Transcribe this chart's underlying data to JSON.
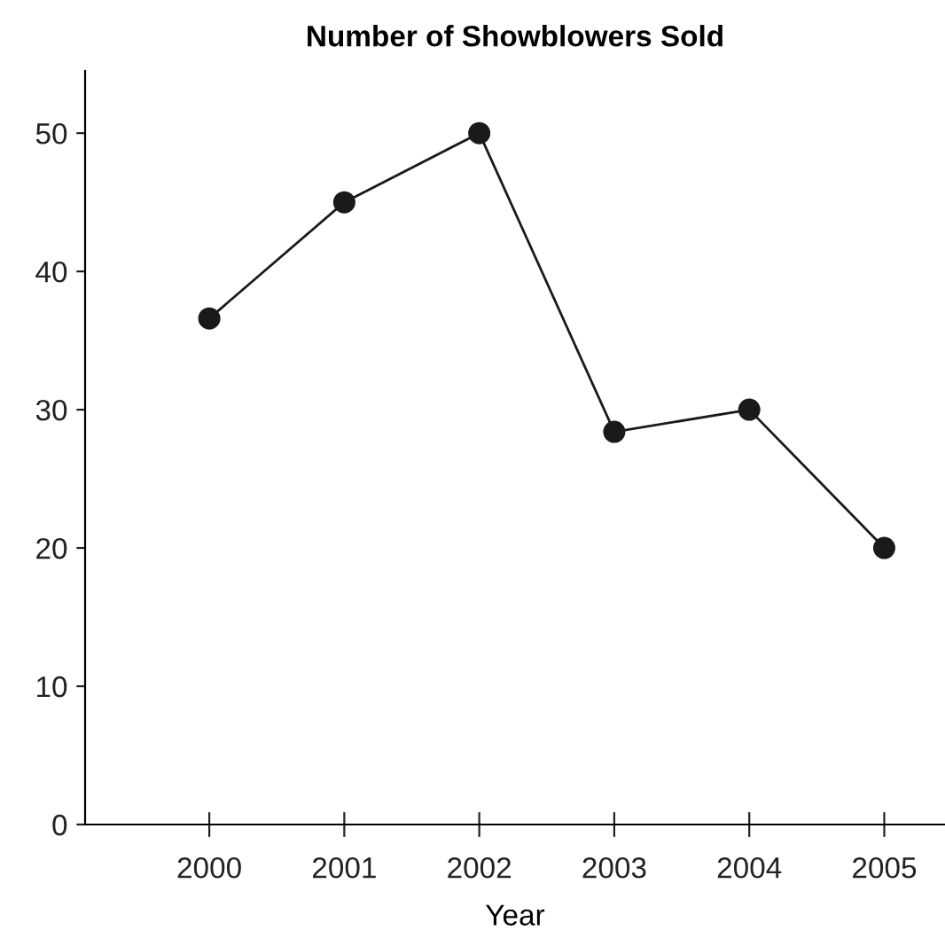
{
  "chart_data": {
    "type": "line",
    "title": "Number of Showblowers Sold",
    "xlabel": "Year",
    "categories": [
      "2000",
      "2001",
      "2002",
      "2003",
      "2004",
      "2005"
    ],
    "series": [
      {
        "color": "#1a1a1a",
        "values": [
          36.6,
          45,
          50,
          28.4,
          30,
          20
        ]
      }
    ],
    "ylim": [
      0,
      54.5
    ],
    "yticks": [
      0,
      10,
      20,
      30,
      40,
      50
    ],
    "marker": "circle",
    "line_style": "solid",
    "grid": false,
    "legend": false
  }
}
